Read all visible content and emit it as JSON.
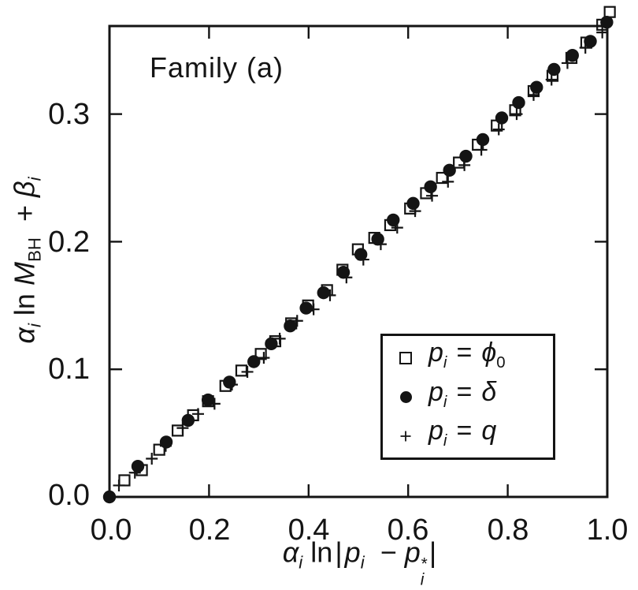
{
  "colors": {
    "ink": "#141414",
    "paper": "#ffffff"
  },
  "chart_data": {
    "type": "scatter",
    "title": "Family (a)",
    "xlabel": "alpha_i ln |p_i - p_i*|",
    "ylabel": "alpha_i ln M_BH + beta_i",
    "xlim": [
      0,
      1.0
    ],
    "ylim": [
      0,
      0.369
    ],
    "grid": false,
    "legend_position": "inside lower-right",
    "x_ticks": [
      0,
      0.2,
      0.4,
      0.6,
      0.8,
      1.0
    ],
    "y_ticks": [
      0,
      0.1,
      0.2,
      0.3
    ],
    "x_tick_labels": [
      "0.0",
      "0.2",
      "0.4",
      "0.6",
      "0.8",
      "1.0"
    ],
    "y_tick_labels": [
      "0.0",
      "0.1",
      "0.2",
      "0.3"
    ],
    "trend": "all three series collapse onto the diagonal y ~ 0.37 x",
    "series": [
      {
        "name": "p_i = phi_0",
        "marker": "open-square",
        "points": [
          [
            0.03,
            0.013
          ],
          [
            0.065,
            0.021
          ],
          [
            0.1,
            0.037
          ],
          [
            0.137,
            0.052
          ],
          [
            0.168,
            0.064
          ],
          [
            0.198,
            0.075
          ],
          [
            0.233,
            0.087
          ],
          [
            0.265,
            0.099
          ],
          [
            0.304,
            0.112
          ],
          [
            0.333,
            0.122
          ],
          [
            0.365,
            0.136
          ],
          [
            0.399,
            0.15
          ],
          [
            0.437,
            0.162
          ],
          [
            0.468,
            0.178
          ],
          [
            0.499,
            0.194
          ],
          [
            0.532,
            0.203
          ],
          [
            0.564,
            0.213
          ],
          [
            0.604,
            0.226
          ],
          [
            0.636,
            0.238
          ],
          [
            0.668,
            0.25
          ],
          [
            0.702,
            0.262
          ],
          [
            0.74,
            0.276
          ],
          [
            0.778,
            0.291
          ],
          [
            0.815,
            0.303
          ],
          [
            0.852,
            0.318
          ],
          [
            0.89,
            0.33
          ],
          [
            0.928,
            0.344
          ],
          [
            0.958,
            0.356
          ],
          [
            0.99,
            0.37
          ],
          [
            1.005,
            0.38
          ]
        ]
      },
      {
        "name": "p_i = delta",
        "marker": "filled-circle",
        "points": [
          [
            0.0,
            0.0
          ],
          [
            0.057,
            0.024
          ],
          [
            0.114,
            0.043
          ],
          [
            0.158,
            0.06
          ],
          [
            0.198,
            0.076
          ],
          [
            0.241,
            0.09
          ],
          [
            0.29,
            0.106
          ],
          [
            0.325,
            0.12
          ],
          [
            0.363,
            0.134
          ],
          [
            0.395,
            0.148
          ],
          [
            0.43,
            0.16
          ],
          [
            0.47,
            0.176
          ],
          [
            0.505,
            0.19
          ],
          [
            0.539,
            0.202
          ],
          [
            0.57,
            0.217
          ],
          [
            0.61,
            0.23
          ],
          [
            0.645,
            0.243
          ],
          [
            0.683,
            0.256
          ],
          [
            0.716,
            0.267
          ],
          [
            0.75,
            0.28
          ],
          [
            0.788,
            0.297
          ],
          [
            0.822,
            0.309
          ],
          [
            0.858,
            0.321
          ],
          [
            0.893,
            0.335
          ],
          [
            0.93,
            0.346
          ],
          [
            0.966,
            0.357
          ],
          [
            0.999,
            0.372
          ]
        ]
      },
      {
        "name": "p_i = q",
        "marker": "plus",
        "points": [
          [
            0.019,
            0.009
          ],
          [
            0.051,
            0.019
          ],
          [
            0.085,
            0.03
          ],
          [
            0.113,
            0.04
          ],
          [
            0.147,
            0.054
          ],
          [
            0.178,
            0.065
          ],
          [
            0.211,
            0.073
          ],
          [
            0.246,
            0.088
          ],
          [
            0.277,
            0.098
          ],
          [
            0.31,
            0.109
          ],
          [
            0.342,
            0.124
          ],
          [
            0.377,
            0.138
          ],
          [
            0.41,
            0.147
          ],
          [
            0.443,
            0.158
          ],
          [
            0.476,
            0.172
          ],
          [
            0.51,
            0.186
          ],
          [
            0.545,
            0.198
          ],
          [
            0.578,
            0.211
          ],
          [
            0.614,
            0.224
          ],
          [
            0.648,
            0.236
          ],
          [
            0.68,
            0.247
          ],
          [
            0.713,
            0.26
          ],
          [
            0.747,
            0.272
          ],
          [
            0.782,
            0.288
          ],
          [
            0.818,
            0.3
          ],
          [
            0.852,
            0.315
          ],
          [
            0.888,
            0.327
          ],
          [
            0.92,
            0.34
          ],
          [
            0.956,
            0.352
          ],
          [
            0.99,
            0.364
          ]
        ]
      }
    ]
  },
  "x_axis_title": {
    "alpha": "α",
    "alpha_sub": "i",
    "ln": "ln",
    "bar_open": "|",
    "p1": "p",
    "p1_sub": "i",
    "minus": "−",
    "p2": "p",
    "p2_sup": "*",
    "p2_sub": "i",
    "bar_close": "|"
  },
  "y_axis_title": {
    "alpha": "α",
    "alpha_sub": "i",
    "ln": "ln",
    "M": "M",
    "M_sub": "BH",
    "plus": "+",
    "beta": "β",
    "beta_sub": "i"
  },
  "legend": {
    "items": [
      {
        "marker": "open-square",
        "var": "p",
        "var_sub": "i",
        "eq": "=",
        "value": "ϕ",
        "value_sub": "0"
      },
      {
        "marker": "filled-circle",
        "var": "p",
        "var_sub": "i",
        "eq": "=",
        "value": "δ",
        "value_sub": ""
      },
      {
        "marker": "plus",
        "var": "p",
        "var_sub": "i",
        "eq": "=",
        "value": "q",
        "value_sub": ""
      }
    ]
  }
}
